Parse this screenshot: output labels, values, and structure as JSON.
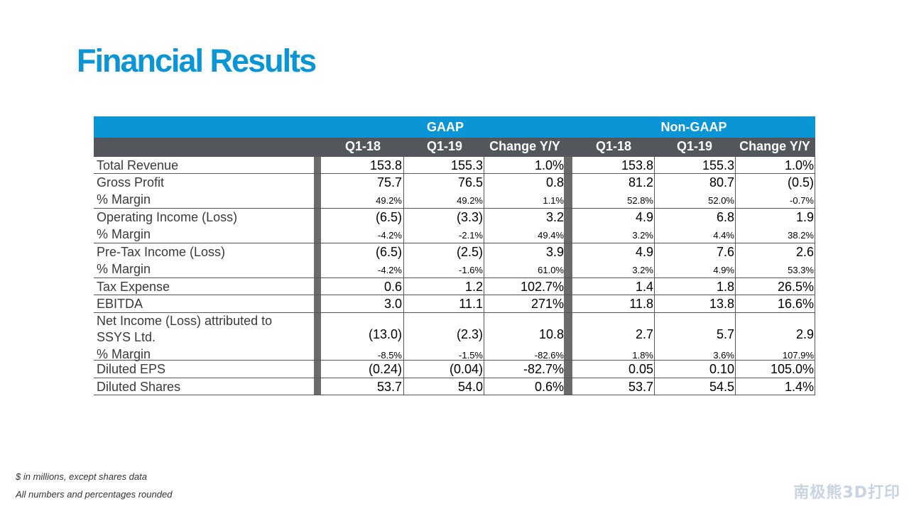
{
  "title": "Financial Results",
  "table": {
    "groups": [
      "GAAP",
      "Non-GAAP"
    ],
    "columns": [
      "Q1-18",
      "Q1-19",
      "Change Y/Y",
      "Q1-18",
      "Q1-19",
      "Change Y/Y"
    ],
    "rows": [
      {
        "label": "Total Revenue",
        "values": [
          "153.8",
          "155.3",
          "1.0%",
          "153.8",
          "155.3",
          "1.0%"
        ],
        "small": false,
        "label_line2": ""
      },
      {
        "label": "Gross Profit",
        "values": [
          "75.7",
          "76.5",
          "0.8",
          "81.2",
          "80.7",
          "(0.5)"
        ],
        "small": false,
        "label_line2": ""
      },
      {
        "label": "% Margin",
        "values": [
          "49.2%",
          "49.2%",
          "1.1%",
          "52.8%",
          "52.0%",
          "-0.7%"
        ],
        "small": true,
        "label_line2": ""
      },
      {
        "label": "Operating Income (Loss)",
        "values": [
          "(6.5)",
          "(3.3)",
          "3.2",
          "4.9",
          "6.8",
          "1.9"
        ],
        "small": false,
        "label_line2": ""
      },
      {
        "label": "% Margin",
        "values": [
          "-4.2%",
          "-2.1%",
          "49.4%",
          "3.2%",
          "4.4%",
          "38.2%"
        ],
        "small": true,
        "label_line2": ""
      },
      {
        "label": "Pre-Tax Income (Loss)",
        "values": [
          "(6.5)",
          "(2.5)",
          "3.9",
          "4.9",
          "7.6",
          "2.6"
        ],
        "small": false,
        "label_line2": ""
      },
      {
        "label": "% Margin",
        "values": [
          "-4.2%",
          "-1.6%",
          "61.0%",
          "3.2%",
          "4.9%",
          "53.3%"
        ],
        "small": true,
        "label_line2": ""
      },
      {
        "label": "Tax Expense",
        "values": [
          "0.6",
          "1.2",
          "102.7%",
          "1.4",
          "1.8",
          "26.5%"
        ],
        "small": false,
        "label_line2": ""
      },
      {
        "label": "EBITDA",
        "values": [
          "3.0",
          "11.1",
          "271%",
          "11.8",
          "13.8",
          "16.6%"
        ],
        "small": false,
        "label_line2": ""
      },
      {
        "label": "Net Income (Loss) attributed to",
        "label_line2": "SSYS Ltd.",
        "values": [
          "(13.0)",
          "(2.3)",
          "10.8",
          "2.7",
          "5.7",
          "2.9"
        ],
        "small": false
      },
      {
        "label": "% Margin",
        "values": [
          "-8.5%",
          "-1.5%",
          "-82.6%",
          "1.8%",
          "3.6%",
          "107.9%"
        ],
        "small": true,
        "label_line2": ""
      },
      {
        "label": "Diluted EPS",
        "values": [
          "(0.24)",
          "(0.04)",
          "-82.7%",
          "0.05",
          "0.10",
          "105.0%"
        ],
        "small": false,
        "label_line2": ""
      },
      {
        "label": "Diluted Shares",
        "values": [
          "53.7",
          "54.0",
          "0.6%",
          "53.7",
          "54.5",
          "1.4%"
        ],
        "small": false,
        "label_line2": ""
      }
    ]
  },
  "footnotes": [
    "$ in millions, except shares data",
    "All numbers and percentages rounded"
  ],
  "watermark": "南极熊3D打印",
  "colors": {
    "accent": "#0a96d6",
    "header_gray": "#53565a"
  }
}
